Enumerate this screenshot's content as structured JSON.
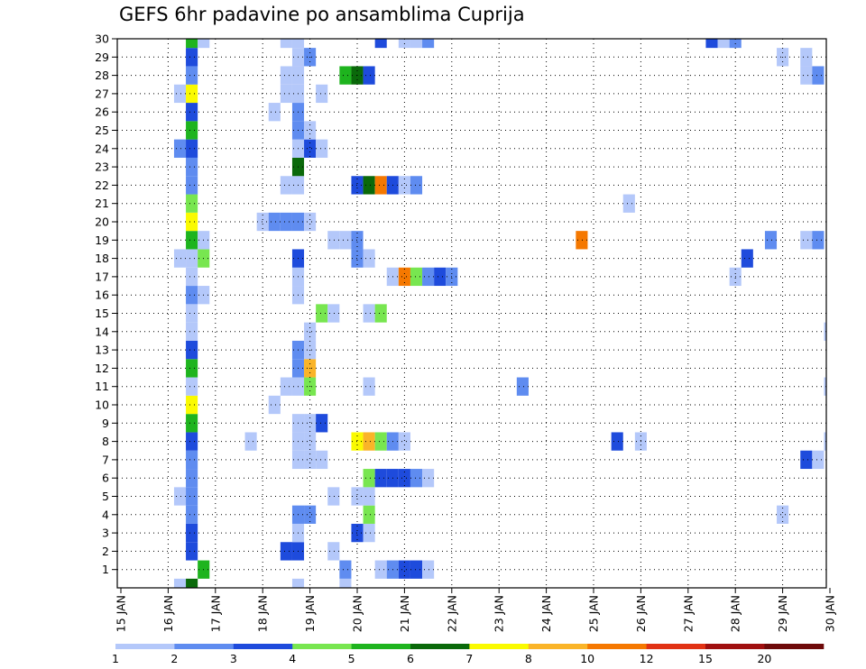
{
  "chart_data": {
    "type": "heatmap",
    "title": "GEFS 6hr padavine po ansamblima Cuprija",
    "x_tick_labels": [
      "15 JAN",
      "16 JAN",
      "17 JAN",
      "18 JAN",
      "19 JAN",
      "20 JAN",
      "21 JAN",
      "22 JAN",
      "23 JAN",
      "24 JAN",
      "25 JAN",
      "26 JAN",
      "27 JAN",
      "28 JAN",
      "29 JAN",
      "30 JAN"
    ],
    "y_tick_labels": [
      "1",
      "2",
      "3",
      "4",
      "5",
      "6",
      "7",
      "8",
      "9",
      "10",
      "11",
      "12",
      "13",
      "14",
      "15",
      "16",
      "17",
      "18",
      "19",
      "20",
      "21",
      "22",
      "23",
      "24",
      "25",
      "26",
      "27",
      "28",
      "29",
      "30"
    ],
    "y_range": [
      0,
      30
    ],
    "x_range": [
      "15 JAN 00Z",
      "30 JAN 00Z"
    ],
    "time_step_hours": 6,
    "grid": "dotted",
    "legend": {
      "position": "bottom",
      "labels": [
        "1",
        "2",
        "3",
        "4",
        "5",
        "6",
        "7",
        "8",
        "10",
        "12",
        "15",
        "20"
      ],
      "colors": [
        "#b4c8fa",
        "#5f8cf0",
        "#1e4bdc",
        "#78e650",
        "#1eb41e",
        "#0a690a",
        "#fafa00",
        "#fab428",
        "#f57800",
        "#e13214",
        "#a00f0f",
        "#6e0a0a"
      ]
    },
    "cells": [
      {
        "member": 0,
        "x": "16 JAN 06Z",
        "cls": 1
      },
      {
        "member": 0,
        "x": "16 JAN 12Z",
        "cls": 6
      },
      {
        "member": 0,
        "x": "18 JAN 18Z",
        "cls": 1
      },
      {
        "member": 0,
        "x": "19 JAN 18Z",
        "cls": 1
      },
      {
        "member": 1,
        "x": "16 JAN 18Z",
        "cls": 5
      },
      {
        "member": 1,
        "x": "19 JAN 18Z",
        "cls": 2
      },
      {
        "member": 1,
        "x": "20 JAN 12Z",
        "cls": 1
      },
      {
        "member": 1,
        "x": "20 JAN 18Z",
        "cls": 2
      },
      {
        "member": 1,
        "x": "21 JAN 00Z",
        "cls": 3
      },
      {
        "member": 1,
        "x": "21 JAN 06Z",
        "cls": 3
      },
      {
        "member": 1,
        "x": "21 JAN 12Z",
        "cls": 1
      },
      {
        "member": 2,
        "x": "16 JAN 12Z",
        "cls": 3
      },
      {
        "member": 2,
        "x": "18 JAN 12Z",
        "cls": 3
      },
      {
        "member": 2,
        "x": "18 JAN 18Z",
        "cls": 3
      },
      {
        "member": 2,
        "x": "19 JAN 12Z",
        "cls": 1
      },
      {
        "member": 3,
        "x": "16 JAN 12Z",
        "cls": 3
      },
      {
        "member": 3,
        "x": "18 JAN 18Z",
        "cls": 1
      },
      {
        "member": 3,
        "x": "20 JAN 00Z",
        "cls": 3
      },
      {
        "member": 3,
        "x": "20 JAN 06Z",
        "cls": 1
      },
      {
        "member": 4,
        "x": "16 JAN 12Z",
        "cls": 2
      },
      {
        "member": 4,
        "x": "18 JAN 18Z",
        "cls": 2
      },
      {
        "member": 4,
        "x": "19 JAN 00Z",
        "cls": 2
      },
      {
        "member": 4,
        "x": "20 JAN 06Z",
        "cls": 4
      },
      {
        "member": 4,
        "x": "29 JAN 00Z",
        "cls": 1
      },
      {
        "member": 5,
        "x": "16 JAN 06Z",
        "cls": 1
      },
      {
        "member": 5,
        "x": "16 JAN 12Z",
        "cls": 2
      },
      {
        "member": 5,
        "x": "19 JAN 12Z",
        "cls": 1
      },
      {
        "member": 5,
        "x": "20 JAN 00Z",
        "cls": 1
      },
      {
        "member": 5,
        "x": "20 JAN 06Z",
        "cls": 1
      },
      {
        "member": 6,
        "x": "16 JAN 12Z",
        "cls": 2
      },
      {
        "member": 6,
        "x": "20 JAN 06Z",
        "cls": 4
      },
      {
        "member": 6,
        "x": "20 JAN 12Z",
        "cls": 3
      },
      {
        "member": 6,
        "x": "20 JAN 18Z",
        "cls": 3
      },
      {
        "member": 6,
        "x": "21 JAN 00Z",
        "cls": 3
      },
      {
        "member": 6,
        "x": "21 JAN 06Z",
        "cls": 2
      },
      {
        "member": 6,
        "x": "21 JAN 12Z",
        "cls": 1
      },
      {
        "member": 7,
        "x": "16 JAN 12Z",
        "cls": 2
      },
      {
        "member": 7,
        "x": "18 JAN 18Z",
        "cls": 1
      },
      {
        "member": 7,
        "x": "19 JAN 00Z",
        "cls": 1
      },
      {
        "member": 7,
        "x": "19 JAN 06Z",
        "cls": 1
      },
      {
        "member": 7,
        "x": "29 JAN 12Z",
        "cls": 3
      },
      {
        "member": 7,
        "x": "29 JAN 18Z",
        "cls": 1
      },
      {
        "member": 8,
        "x": "16 JAN 12Z",
        "cls": 3
      },
      {
        "member": 8,
        "x": "17 JAN 18Z",
        "cls": 1
      },
      {
        "member": 8,
        "x": "18 JAN 18Z",
        "cls": 1
      },
      {
        "member": 8,
        "x": "19 JAN 00Z",
        "cls": 1
      },
      {
        "member": 8,
        "x": "20 JAN 00Z",
        "cls": 7
      },
      {
        "member": 8,
        "x": "20 JAN 06Z",
        "cls": 8
      },
      {
        "member": 8,
        "x": "20 JAN 12Z",
        "cls": 4
      },
      {
        "member": 8,
        "x": "20 JAN 18Z",
        "cls": 2
      },
      {
        "member": 8,
        "x": "21 JAN 00Z",
        "cls": 1
      },
      {
        "member": 8,
        "x": "25 JAN 12Z",
        "cls": 3
      },
      {
        "member": 8,
        "x": "26 JAN 00Z",
        "cls": 1
      },
      {
        "member": 8,
        "x": "30 JAN 00Z",
        "cls": 1
      },
      {
        "member": 9,
        "x": "16 JAN 12Z",
        "cls": 5
      },
      {
        "member": 9,
        "x": "18 JAN 18Z",
        "cls": 1
      },
      {
        "member": 9,
        "x": "19 JAN 00Z",
        "cls": 1
      },
      {
        "member": 9,
        "x": "19 JAN 06Z",
        "cls": 3
      },
      {
        "member": 10,
        "x": "16 JAN 12Z",
        "cls": 7
      },
      {
        "member": 10,
        "x": "18 JAN 06Z",
        "cls": 1
      },
      {
        "member": 11,
        "x": "16 JAN 12Z",
        "cls": 1
      },
      {
        "member": 11,
        "x": "18 JAN 12Z",
        "cls": 1
      },
      {
        "member": 11,
        "x": "18 JAN 18Z",
        "cls": 1
      },
      {
        "member": 11,
        "x": "19 JAN 00Z",
        "cls": 4
      },
      {
        "member": 11,
        "x": "20 JAN 06Z",
        "cls": 1
      },
      {
        "member": 11,
        "x": "23 JAN 12Z",
        "cls": 2
      },
      {
        "member": 11,
        "x": "30 JAN 00Z",
        "cls": 1
      },
      {
        "member": 12,
        "x": "16 JAN 12Z",
        "cls": 5
      },
      {
        "member": 12,
        "x": "18 JAN 18Z",
        "cls": 2
      },
      {
        "member": 12,
        "x": "19 JAN 00Z",
        "cls": 8
      },
      {
        "member": 13,
        "x": "16 JAN 12Z",
        "cls": 3
      },
      {
        "member": 13,
        "x": "18 JAN 18Z",
        "cls": 2
      },
      {
        "member": 13,
        "x": "19 JAN 00Z",
        "cls": 1
      },
      {
        "member": 14,
        "x": "16 JAN 12Z",
        "cls": 1
      },
      {
        "member": 14,
        "x": "19 JAN 00Z",
        "cls": 1
      },
      {
        "member": 14,
        "x": "30 JAN 00Z",
        "cls": 1
      },
      {
        "member": 15,
        "x": "16 JAN 12Z",
        "cls": 1
      },
      {
        "member": 15,
        "x": "19 JAN 06Z",
        "cls": 4
      },
      {
        "member": 15,
        "x": "19 JAN 12Z",
        "cls": 1
      },
      {
        "member": 15,
        "x": "20 JAN 06Z",
        "cls": 1
      },
      {
        "member": 15,
        "x": "20 JAN 12Z",
        "cls": 4
      },
      {
        "member": 16,
        "x": "16 JAN 12Z",
        "cls": 2
      },
      {
        "member": 16,
        "x": "16 JAN 18Z",
        "cls": 1
      },
      {
        "member": 16,
        "x": "18 JAN 18Z",
        "cls": 1
      },
      {
        "member": 17,
        "x": "16 JAN 12Z",
        "cls": 1
      },
      {
        "member": 17,
        "x": "18 JAN 18Z",
        "cls": 1
      },
      {
        "member": 17,
        "x": "20 JAN 18Z",
        "cls": 1
      },
      {
        "member": 17,
        "x": "21 JAN 00Z",
        "cls": 9
      },
      {
        "member": 17,
        "x": "21 JAN 06Z",
        "cls": 4
      },
      {
        "member": 17,
        "x": "21 JAN 12Z",
        "cls": 2
      },
      {
        "member": 17,
        "x": "21 JAN 18Z",
        "cls": 3
      },
      {
        "member": 17,
        "x": "22 JAN 00Z",
        "cls": 2
      },
      {
        "member": 17,
        "x": "28 JAN 00Z",
        "cls": 1
      },
      {
        "member": 18,
        "x": "16 JAN 06Z",
        "cls": 1
      },
      {
        "member": 18,
        "x": "16 JAN 12Z",
        "cls": 1
      },
      {
        "member": 18,
        "x": "16 JAN 18Z",
        "cls": 4
      },
      {
        "member": 18,
        "x": "18 JAN 18Z",
        "cls": 3
      },
      {
        "member": 18,
        "x": "20 JAN 00Z",
        "cls": 2
      },
      {
        "member": 18,
        "x": "20 JAN 06Z",
        "cls": 1
      },
      {
        "member": 18,
        "x": "28 JAN 06Z",
        "cls": 3
      },
      {
        "member": 19,
        "x": "16 JAN 12Z",
        "cls": 5
      },
      {
        "member": 19,
        "x": "16 JAN 18Z",
        "cls": 1
      },
      {
        "member": 19,
        "x": "19 JAN 12Z",
        "cls": 1
      },
      {
        "member": 19,
        "x": "19 JAN 18Z",
        "cls": 1
      },
      {
        "member": 19,
        "x": "20 JAN 00Z",
        "cls": 2
      },
      {
        "member": 19,
        "x": "24 JAN 18Z",
        "cls": 9
      },
      {
        "member": 19,
        "x": "28 JAN 18Z",
        "cls": 2
      },
      {
        "member": 19,
        "x": "29 JAN 12Z",
        "cls": 1
      },
      {
        "member": 19,
        "x": "29 JAN 18Z",
        "cls": 2
      },
      {
        "member": 20,
        "x": "16 JAN 12Z",
        "cls": 7
      },
      {
        "member": 20,
        "x": "18 JAN 00Z",
        "cls": 1
      },
      {
        "member": 20,
        "x": "18 JAN 06Z",
        "cls": 2
      },
      {
        "member": 20,
        "x": "18 JAN 12Z",
        "cls": 2
      },
      {
        "member": 20,
        "x": "18 JAN 18Z",
        "cls": 2
      },
      {
        "member": 20,
        "x": "19 JAN 00Z",
        "cls": 1
      },
      {
        "member": 21,
        "x": "16 JAN 12Z",
        "cls": 4
      },
      {
        "member": 21,
        "x": "25 JAN 18Z",
        "cls": 1
      },
      {
        "member": 22,
        "x": "16 JAN 12Z",
        "cls": 2
      },
      {
        "member": 22,
        "x": "18 JAN 12Z",
        "cls": 1
      },
      {
        "member": 22,
        "x": "18 JAN 18Z",
        "cls": 1
      },
      {
        "member": 22,
        "x": "20 JAN 00Z",
        "cls": 3
      },
      {
        "member": 22,
        "x": "20 JAN 06Z",
        "cls": 6
      },
      {
        "member": 22,
        "x": "20 JAN 12Z",
        "cls": 9
      },
      {
        "member": 22,
        "x": "20 JAN 18Z",
        "cls": 3
      },
      {
        "member": 22,
        "x": "21 JAN 00Z",
        "cls": 1
      },
      {
        "member": 22,
        "x": "21 JAN 06Z",
        "cls": 2
      },
      {
        "member": 23,
        "x": "16 JAN 12Z",
        "cls": 2
      },
      {
        "member": 23,
        "x": "18 JAN 18Z",
        "cls": 6
      },
      {
        "member": 24,
        "x": "16 JAN 06Z",
        "cls": 2
      },
      {
        "member": 24,
        "x": "16 JAN 12Z",
        "cls": 3
      },
      {
        "member": 24,
        "x": "18 JAN 18Z",
        "cls": 1
      },
      {
        "member": 24,
        "x": "19 JAN 00Z",
        "cls": 3
      },
      {
        "member": 24,
        "x": "19 JAN 06Z",
        "cls": 1
      },
      {
        "member": 25,
        "x": "16 JAN 12Z",
        "cls": 5
      },
      {
        "member": 25,
        "x": "18 JAN 18Z",
        "cls": 2
      },
      {
        "member": 25,
        "x": "19 JAN 00Z",
        "cls": 1
      },
      {
        "member": 26,
        "x": "16 JAN 12Z",
        "cls": 3
      },
      {
        "member": 26,
        "x": "18 JAN 06Z",
        "cls": 1
      },
      {
        "member": 26,
        "x": "18 JAN 18Z",
        "cls": 2
      },
      {
        "member": 27,
        "x": "16 JAN 06Z",
        "cls": 1
      },
      {
        "member": 27,
        "x": "16 JAN 12Z",
        "cls": 7
      },
      {
        "member": 27,
        "x": "18 JAN 12Z",
        "cls": 1
      },
      {
        "member": 27,
        "x": "18 JAN 18Z",
        "cls": 1
      },
      {
        "member": 27,
        "x": "19 JAN 06Z",
        "cls": 1
      },
      {
        "member": 28,
        "x": "16 JAN 12Z",
        "cls": 2
      },
      {
        "member": 28,
        "x": "18 JAN 12Z",
        "cls": 1
      },
      {
        "member": 28,
        "x": "18 JAN 18Z",
        "cls": 1
      },
      {
        "member": 28,
        "x": "19 JAN 18Z",
        "cls": 5
      },
      {
        "member": 28,
        "x": "20 JAN 00Z",
        "cls": 6
      },
      {
        "member": 28,
        "x": "20 JAN 06Z",
        "cls": 3
      },
      {
        "member": 28,
        "x": "29 JAN 12Z",
        "cls": 1
      },
      {
        "member": 28,
        "x": "29 JAN 18Z",
        "cls": 2
      },
      {
        "member": 29,
        "x": "16 JAN 12Z",
        "cls": 3
      },
      {
        "member": 29,
        "x": "18 JAN 18Z",
        "cls": 1
      },
      {
        "member": 29,
        "x": "19 JAN 00Z",
        "cls": 2
      },
      {
        "member": 29,
        "x": "29 JAN 00Z",
        "cls": 1
      },
      {
        "member": 29,
        "x": "29 JAN 12Z",
        "cls": 1
      },
      {
        "member": 30,
        "x": "16 JAN 12Z",
        "cls": 5
      },
      {
        "member": 30,
        "x": "16 JAN 18Z",
        "cls": 1
      },
      {
        "member": 30,
        "x": "18 JAN 12Z",
        "cls": 1
      },
      {
        "member": 30,
        "x": "18 JAN 18Z",
        "cls": 1
      },
      {
        "member": 30,
        "x": "20 JAN 12Z",
        "cls": 3
      },
      {
        "member": 30,
        "x": "21 JAN 00Z",
        "cls": 1
      },
      {
        "member": 30,
        "x": "21 JAN 06Z",
        "cls": 1
      },
      {
        "member": 30,
        "x": "21 JAN 12Z",
        "cls": 2
      },
      {
        "member": 30,
        "x": "27 JAN 12Z",
        "cls": 3
      },
      {
        "member": 30,
        "x": "27 JAN 18Z",
        "cls": 1
      },
      {
        "member": 30,
        "x": "28 JAN 00Z",
        "cls": 2
      }
    ]
  }
}
